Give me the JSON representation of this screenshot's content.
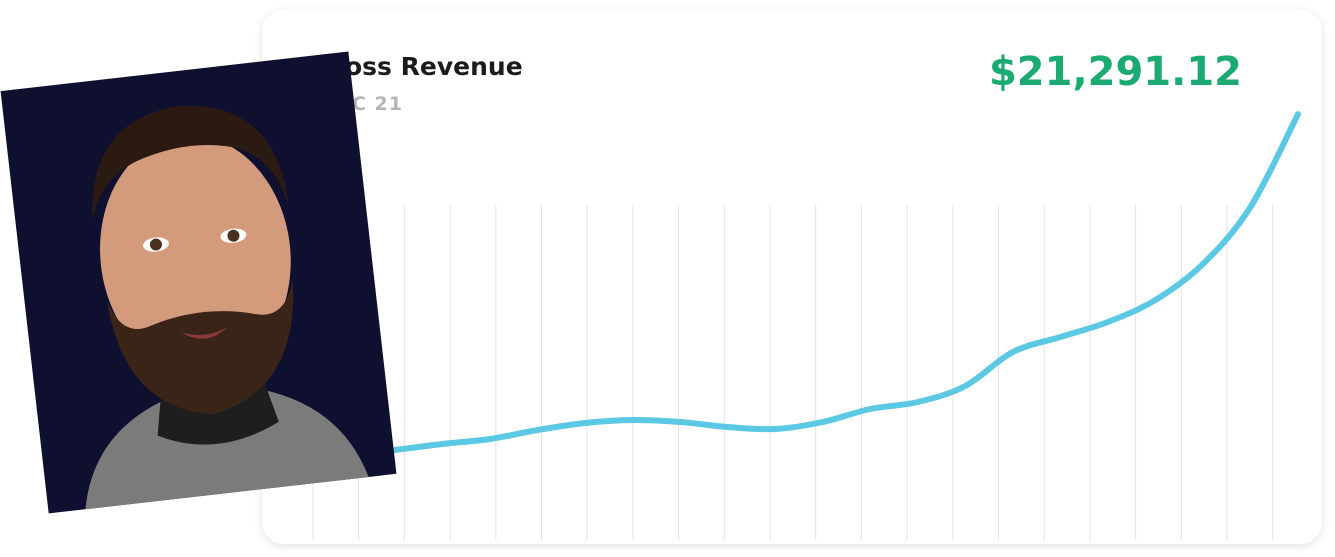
{
  "chart_data": {
    "type": "line",
    "title": "oss Revenue",
    "subtitle": "C 21",
    "headline": "$21,291.12",
    "values": [
      4500,
      4800,
      5050,
      5500,
      5850,
      6000,
      5900,
      5650,
      5550,
      5900,
      6550,
      6900,
      7700,
      9400,
      10150,
      10900,
      12000,
      13800,
      16650,
      21291.12
    ],
    "color": "#5bc8e4",
    "ylim": [
      0,
      26500
    ]
  }
}
